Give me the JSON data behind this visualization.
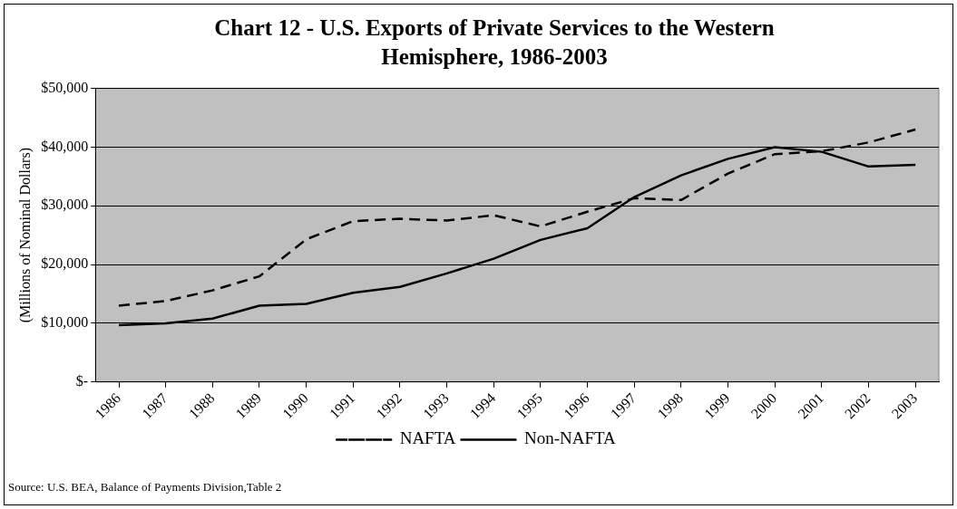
{
  "chart_data": {
    "type": "line",
    "title": "Chart 12 - U.S. Exports of Private Services to the Western Hemisphere, 1986-2003",
    "ylabel": "(Millions of Nominal Dollars)",
    "categories": [
      "1986",
      "1987",
      "1988",
      "1989",
      "1990",
      "1991",
      "1992",
      "1993",
      "1994",
      "1995",
      "1996",
      "1997",
      "1998",
      "1999",
      "2000",
      "2001",
      "2002",
      "2003"
    ],
    "series": [
      {
        "name": "NAFTA",
        "color": "#000000",
        "line_style": "dashed",
        "values": [
          13000,
          13800,
          15600,
          18000,
          24300,
          27400,
          27800,
          27500,
          28400,
          26500,
          29000,
          31300,
          31000,
          35500,
          38800,
          39300,
          40800,
          43000
        ]
      },
      {
        "name": "Non-NAFTA",
        "color": "#000000",
        "line_style": "solid",
        "values": [
          9700,
          10000,
          10800,
          13000,
          13300,
          15200,
          16200,
          18500,
          21000,
          24200,
          26200,
          31500,
          35200,
          38000,
          40000,
          39200,
          36700,
          37000
        ]
      }
    ],
    "ylim": [
      0,
      50000
    ],
    "yticks": [
      {
        "value": 0,
        "label": "$-"
      },
      {
        "value": 10000,
        "label": "$10,000"
      },
      {
        "value": 20000,
        "label": "$20,000"
      },
      {
        "value": 30000,
        "label": "$30,000"
      },
      {
        "value": 40000,
        "label": "$40,000"
      },
      {
        "value": 50000,
        "label": "$50,000"
      }
    ],
    "grid": "y",
    "legend": "bottom",
    "marker": "none",
    "annotations": [
      "Source: U.S. BEA, Balance of Payments Division,Table 2"
    ]
  }
}
